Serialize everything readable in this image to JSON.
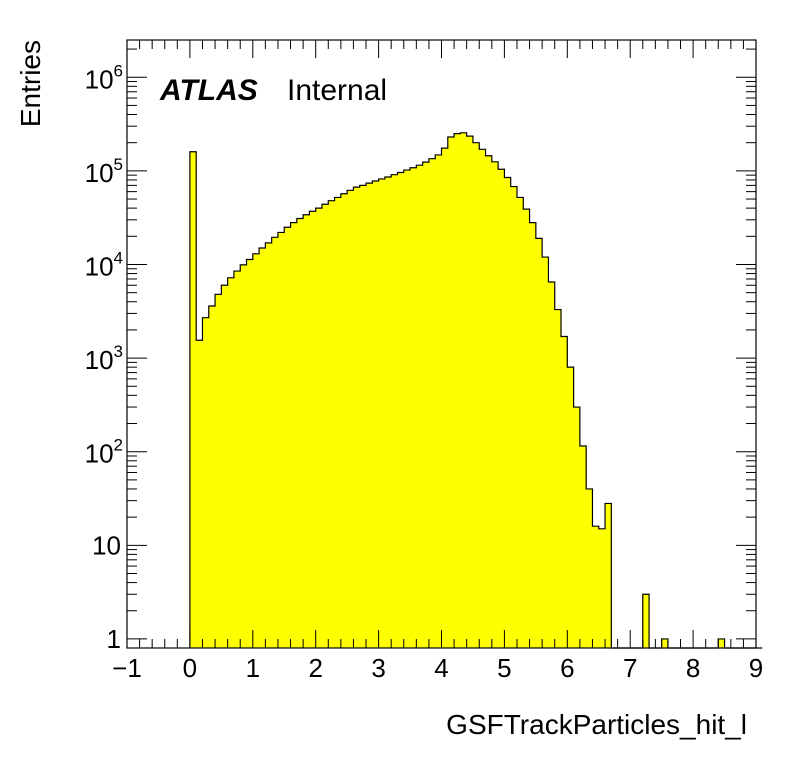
{
  "chart_data": {
    "type": "bar",
    "style": "histogram",
    "title": "",
    "xlabel": "GSFTrackParticles_hit_l",
    "ylabel": "Entries",
    "annotation": {
      "experiment": "ATLAS",
      "status": "Internal"
    },
    "xlim": [
      -1,
      9
    ],
    "ylim": [
      0.8,
      2500000
    ],
    "log_y": true,
    "grid": false,
    "fill_color": "#ffff00",
    "line_color": "#000000",
    "x_ticks": [
      -1,
      0,
      1,
      2,
      3,
      4,
      5,
      6,
      7,
      8,
      9
    ],
    "x_tick_labels": [
      "−1",
      "0",
      "1",
      "2",
      "3",
      "4",
      "5",
      "6",
      "7",
      "8",
      "9"
    ],
    "y_ticks": [
      {
        "value": 1,
        "base": "1",
        "exp": ""
      },
      {
        "value": 10,
        "base": "10",
        "exp": ""
      },
      {
        "value": 100,
        "base": "10",
        "exp": "2"
      },
      {
        "value": 1000,
        "base": "10",
        "exp": "3"
      },
      {
        "value": 10000,
        "base": "10",
        "exp": "4"
      },
      {
        "value": 100000,
        "base": "10",
        "exp": "5"
      },
      {
        "value": 1000000,
        "base": "10",
        "exp": "6"
      }
    ],
    "bin_width": 0.1,
    "bin_start": 0,
    "values": [
      160000,
      1550,
      2700,
      3600,
      4800,
      6000,
      7200,
      8500,
      9900,
      11300,
      13000,
      15000,
      17000,
      19500,
      22000,
      25000,
      28000,
      31000,
      34000,
      37000,
      40000,
      44000,
      48000,
      52000,
      57000,
      62000,
      67000,
      70000,
      74000,
      78000,
      82000,
      86000,
      91000,
      96000,
      102000,
      108000,
      115000,
      124000,
      135000,
      148000,
      175000,
      230000,
      250000,
      255000,
      235000,
      200000,
      170000,
      145000,
      125000,
      104000,
      85000,
      68000,
      52000,
      39000,
      28000,
      19000,
      12000,
      6500,
      3300,
      1700,
      800,
      300,
      115,
      40,
      16,
      15,
      28,
      0,
      0,
      0,
      0,
      0,
      3,
      0,
      0,
      1,
      0,
      0,
      0,
      0,
      0,
      0,
      0,
      0,
      1,
      0,
      0,
      0,
      0,
      0,
      0
    ]
  }
}
